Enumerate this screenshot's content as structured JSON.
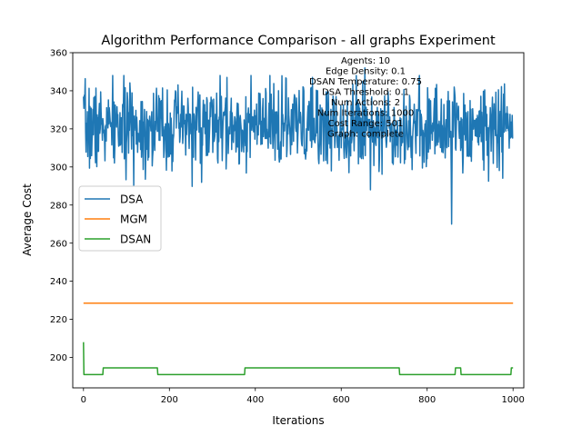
{
  "chart_data": {
    "type": "line",
    "title": "Algorithm Performance Comparison - all graphs Experiment",
    "xlabel": "Iterations",
    "ylabel": "Average Cost",
    "xlim": [
      -25,
      1025
    ],
    "ylim": [
      184,
      360
    ],
    "xticks": [
      0,
      200,
      400,
      600,
      800,
      1000
    ],
    "yticks": [
      200,
      220,
      240,
      260,
      280,
      300,
      320,
      340,
      360
    ],
    "grid": false,
    "legend_position": "center-left",
    "annotation": [
      "Agents: 10",
      "Edge Density: 0.1",
      "DSAN Temperature: 0.75",
      "DSA Threshold: 0.1",
      "Num Actions: 2",
      "Num Iterations: 1000",
      "Cost Range: 501",
      "Graph: complete"
    ],
    "series": [
      {
        "name": "DSA",
        "color": "#1f77b4",
        "kind": "noisy",
        "n": 1000,
        "mean": 321,
        "min": 270,
        "max": 352,
        "noise_std": 11,
        "seed": 7
      },
      {
        "name": "MGM",
        "color": "#ff7f0e",
        "kind": "step",
        "points": [
          [
            0,
            228.5
          ],
          [
            1000,
            228.5
          ]
        ]
      },
      {
        "name": "DSAN",
        "color": "#2ca02c",
        "kind": "step",
        "points": [
          [
            0,
            208
          ],
          [
            1,
            191
          ],
          [
            45,
            191
          ],
          [
            46,
            194.5
          ],
          [
            172,
            194.5
          ],
          [
            173,
            191
          ],
          [
            375,
            191
          ],
          [
            376,
            194.5
          ],
          [
            735,
            194.5
          ],
          [
            736,
            191
          ],
          [
            865,
            191
          ],
          [
            866,
            194.5
          ],
          [
            878,
            194.5
          ],
          [
            879,
            191
          ],
          [
            995,
            191
          ],
          [
            996,
            194.5
          ],
          [
            1000,
            194.5
          ]
        ]
      }
    ]
  }
}
